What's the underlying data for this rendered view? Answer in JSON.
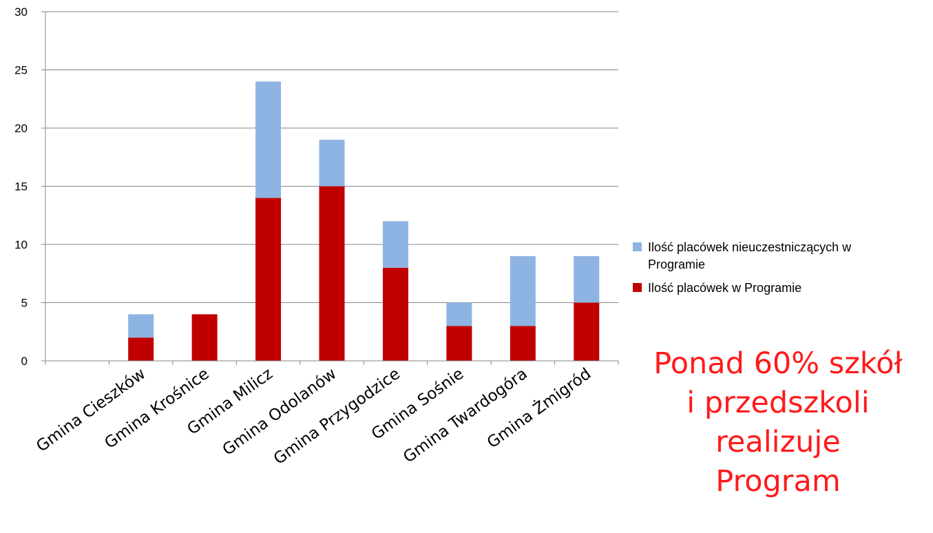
{
  "chart_data": {
    "type": "bar",
    "stacked": true,
    "categories": [
      "",
      "Gmina Cieszków",
      "Gmina Krośnice",
      "Gmina Milicz",
      "Gmina Odolanów",
      "Gmina Przygodzice",
      "Gmina Sośnie",
      "Gmina Twardogóra",
      "Gmina Żmigród"
    ],
    "series": [
      {
        "name": "Ilość placówek w Programie",
        "color": "#c00000",
        "values": [
          0,
          2,
          4,
          14,
          15,
          8,
          3,
          3,
          5
        ]
      },
      {
        "name": "Ilość placówek nieuczestniczących w Programie",
        "color": "#8eb4e3",
        "values": [
          0,
          2,
          0,
          10,
          4,
          4,
          2,
          6,
          4
        ]
      }
    ],
    "ylim": [
      0,
      30
    ],
    "yticks": [
      "0",
      "5",
      "10",
      "15",
      "20",
      "25",
      "30"
    ],
    "grid": true,
    "legend": {
      "placement": "right",
      "entries": [
        {
          "line1": "Ilość placówek nieuczestniczących w",
          "line2": "Programie",
          "color": "#8eb4e3"
        },
        {
          "line1": "Ilość placówek w Programie",
          "line2": "",
          "color": "#c00000"
        }
      ]
    }
  },
  "callout": {
    "lines": [
      "Ponad 60% szkół",
      "i przedszkoli",
      "realizuje",
      "Program"
    ],
    "color": "#ff1a1a"
  }
}
